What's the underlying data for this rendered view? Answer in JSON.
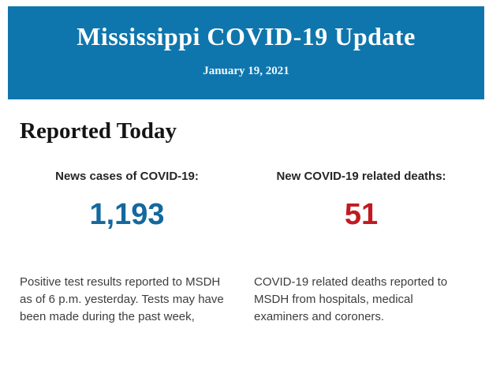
{
  "banner": {
    "title": "Mississippi COVID-19 Update",
    "date": "January 19, 2021",
    "background_color": "#0f76ad",
    "text_color": "#ffffff"
  },
  "report": {
    "heading": "Reported Today",
    "columns": [
      {
        "label": "News cases of COVID-19:",
        "value": "1,193",
        "value_color": "#15689e",
        "description": "Positive test results reported to MSDH as of 6 p.m. yesterday. Tests may have been made during the past week,"
      },
      {
        "label": "New COVID-19 related deaths:",
        "value": "51",
        "value_color": "#c11a20",
        "description": "COVID-19 related deaths reported to MSDH from hospitals, medical examiners and coroners."
      }
    ]
  }
}
